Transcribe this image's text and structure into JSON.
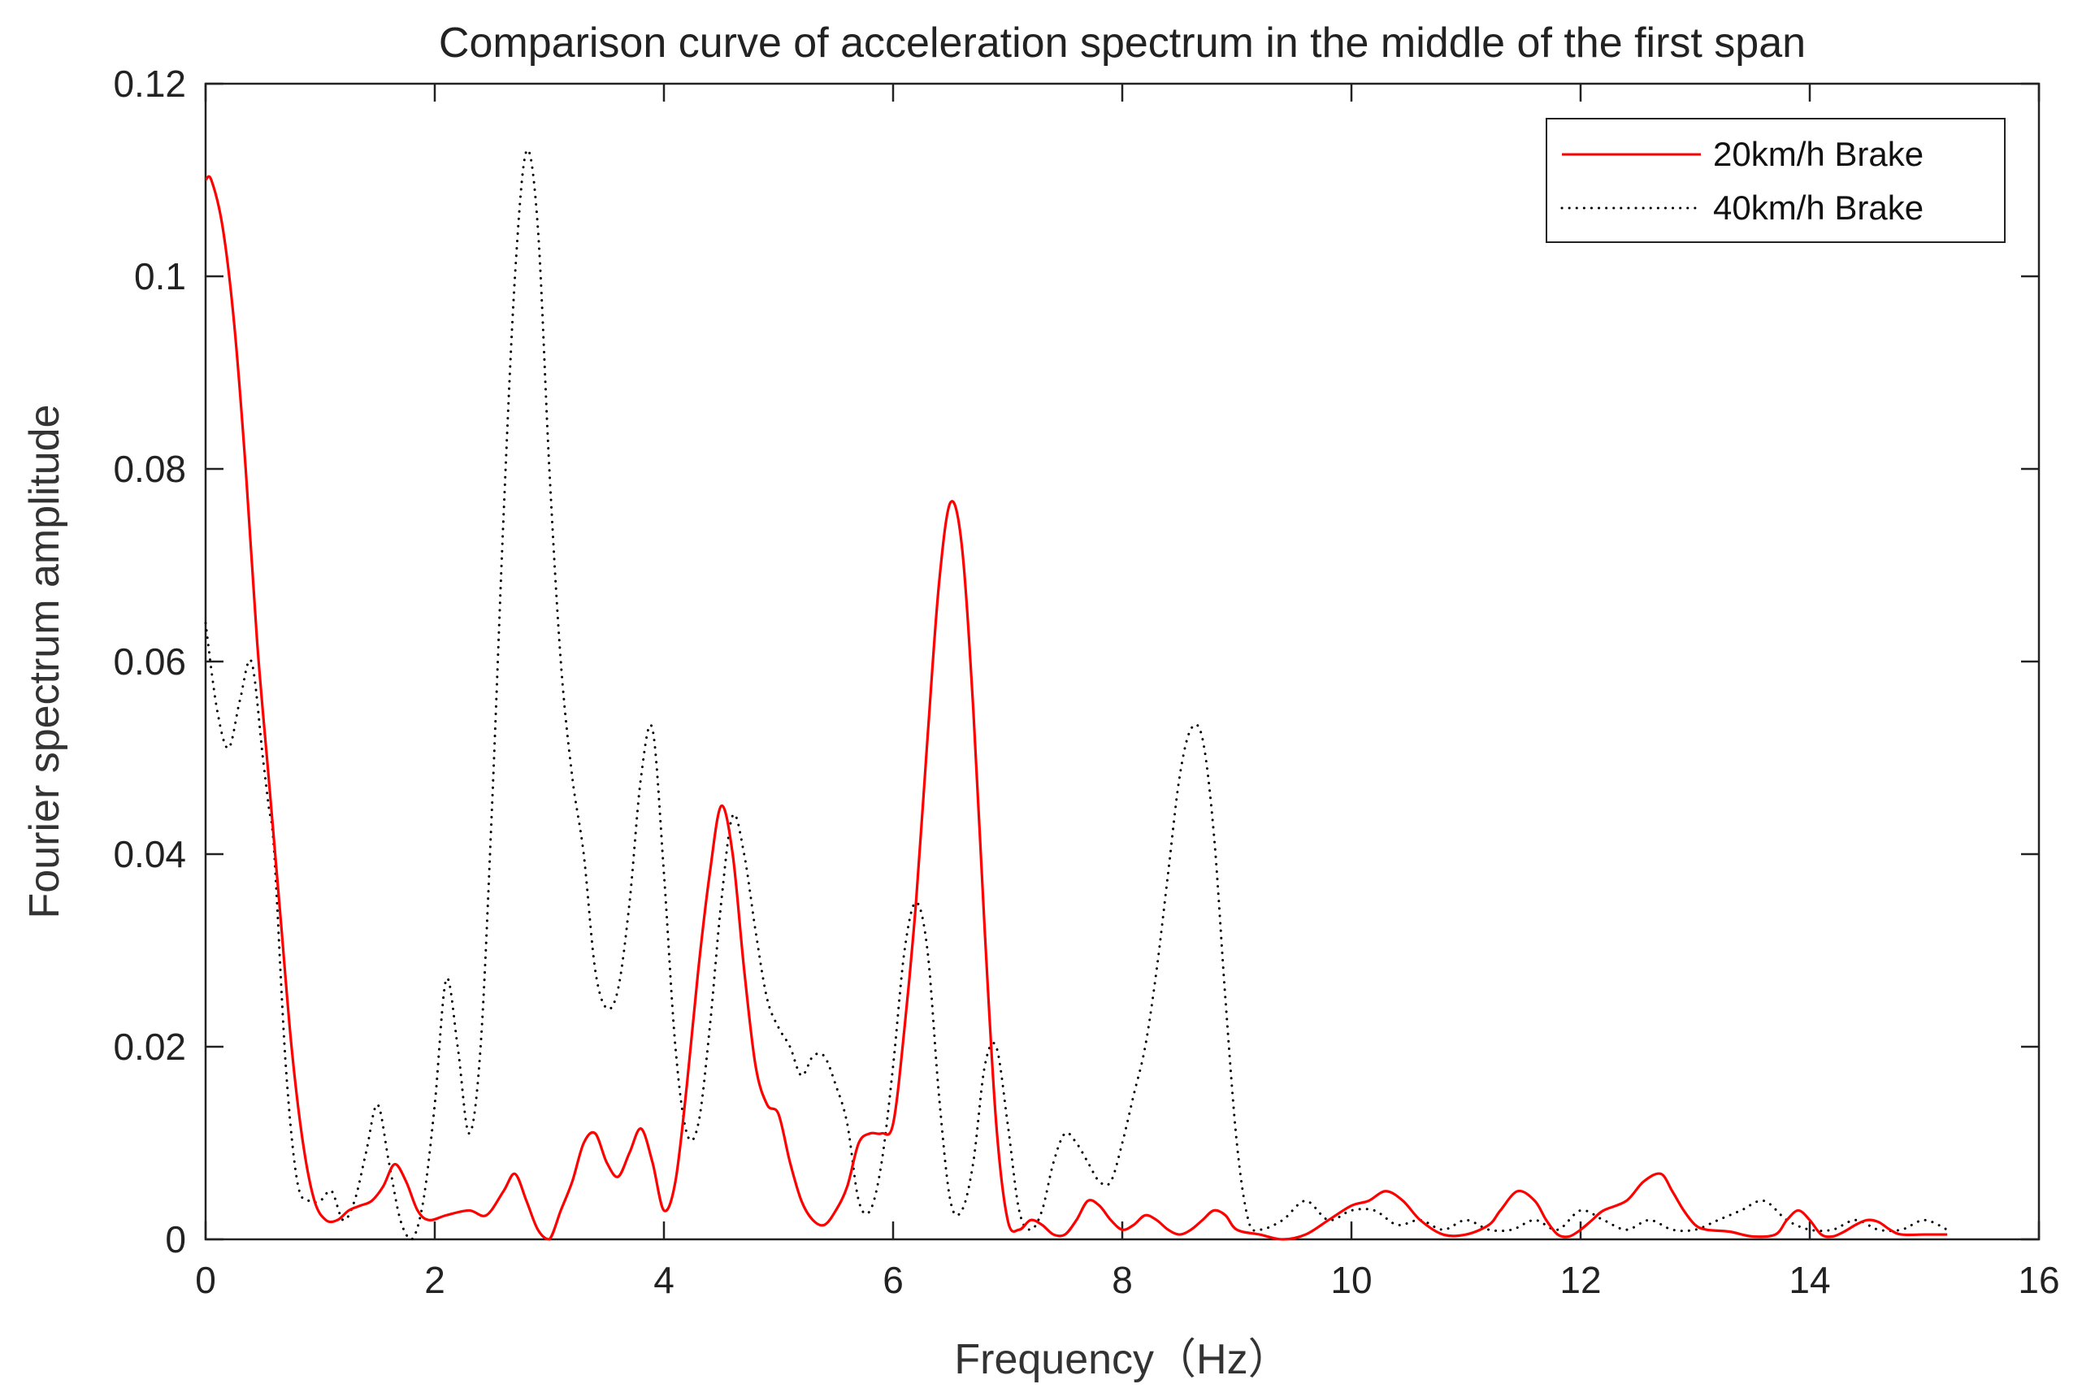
{
  "chart_data": {
    "type": "line",
    "title": "Comparison curve of acceleration spectrum in the middle of the first span",
    "xlabel": "Frequency（Hz）",
    "ylabel": "Fourier spectrum amplitude",
    "xlim": [
      0,
      16
    ],
    "ylim": [
      0,
      0.12
    ],
    "xticks": [
      "0",
      "2",
      "4",
      "6",
      "8",
      "10",
      "12",
      "14",
      "16"
    ],
    "yticks": [
      "0",
      "0.02",
      "0.04",
      "0.06",
      "0.08",
      "0.1",
      "0.12"
    ],
    "grid": false,
    "legend_position": "top-right",
    "series": [
      {
        "name": "20km/h Brake",
        "color": "#ff0000",
        "style": "solid",
        "x": [
          0,
          0.05,
          0.15,
          0.25,
          0.35,
          0.45,
          0.55,
          0.65,
          0.75,
          0.85,
          0.95,
          1.05,
          1.15,
          1.25,
          1.35,
          1.45,
          1.55,
          1.65,
          1.75,
          1.85,
          1.95,
          2.1,
          2.3,
          2.45,
          2.6,
          2.7,
          2.8,
          2.9,
          3.0,
          3.1,
          3.2,
          3.3,
          3.4,
          3.5,
          3.6,
          3.7,
          3.8,
          3.9,
          4.0,
          4.1,
          4.2,
          4.3,
          4.4,
          4.5,
          4.6,
          4.7,
          4.8,
          4.9,
          5.0,
          5.1,
          5.2,
          5.3,
          5.4,
          5.5,
          5.6,
          5.7,
          5.8,
          5.9,
          6.0,
          6.1,
          6.2,
          6.3,
          6.4,
          6.5,
          6.6,
          6.7,
          6.8,
          6.9,
          7.0,
          7.1,
          7.2,
          7.3,
          7.4,
          7.5,
          7.6,
          7.7,
          7.8,
          7.9,
          8.0,
          8.1,
          8.2,
          8.3,
          8.4,
          8.5,
          8.6,
          8.7,
          8.8,
          8.9,
          9.0,
          9.2,
          9.4,
          9.6,
          9.8,
          10.0,
          10.15,
          10.3,
          10.45,
          10.6,
          10.8,
          11.0,
          11.2,
          11.3,
          11.45,
          11.6,
          11.7,
          11.8,
          11.9,
          12.0,
          12.1,
          12.2,
          12.4,
          12.55,
          12.7,
          12.8,
          12.9,
          13.0,
          13.1,
          13.3,
          13.5,
          13.7,
          13.8,
          13.9,
          14.0,
          14.1,
          14.2,
          14.3,
          14.4,
          14.5,
          14.6,
          14.7,
          14.8,
          15.0,
          15.2
        ],
        "y": [
          0.11,
          0.11,
          0.105,
          0.095,
          0.08,
          0.062,
          0.048,
          0.034,
          0.02,
          0.01,
          0.004,
          0.002,
          0.002,
          0.003,
          0.0035,
          0.004,
          0.0055,
          0.0078,
          0.006,
          0.003,
          0.002,
          0.0025,
          0.003,
          0.0025,
          0.005,
          0.0068,
          0.004,
          0.001,
          0.0,
          0.003,
          0.006,
          0.01,
          0.011,
          0.008,
          0.0065,
          0.009,
          0.0115,
          0.008,
          0.003,
          0.006,
          0.016,
          0.028,
          0.038,
          0.045,
          0.04,
          0.028,
          0.018,
          0.014,
          0.013,
          0.008,
          0.004,
          0.002,
          0.0015,
          0.003,
          0.0055,
          0.01,
          0.011,
          0.011,
          0.012,
          0.022,
          0.035,
          0.052,
          0.068,
          0.0765,
          0.072,
          0.055,
          0.032,
          0.012,
          0.002,
          0.001,
          0.002,
          0.0015,
          0.0005,
          0.0005,
          0.002,
          0.004,
          0.0035,
          0.002,
          0.001,
          0.0015,
          0.0025,
          0.002,
          0.001,
          0.0005,
          0.001,
          0.002,
          0.003,
          0.0025,
          0.001,
          0.0005,
          0.0,
          0.0005,
          0.002,
          0.0035,
          0.004,
          0.005,
          0.004,
          0.002,
          0.0005,
          0.0005,
          0.0015,
          0.003,
          0.005,
          0.004,
          0.002,
          0.0005,
          0.0003,
          0.001,
          0.002,
          0.003,
          0.004,
          0.006,
          0.0068,
          0.005,
          0.003,
          0.0015,
          0.001,
          0.0008,
          0.0003,
          0.0005,
          0.002,
          0.003,
          0.002,
          0.0005,
          0.0003,
          0.0008,
          0.0015,
          0.002,
          0.0018,
          0.001,
          0.0005,
          0.0005,
          0.0005
        ]
      },
      {
        "name": "40km/h Brake",
        "color": "#000000",
        "style": "dotted",
        "x": [
          0,
          0.1,
          0.2,
          0.3,
          0.4,
          0.5,
          0.55,
          0.6,
          0.7,
          0.8,
          0.9,
          1.0,
          1.1,
          1.2,
          1.3,
          1.4,
          1.5,
          1.6,
          1.7,
          1.8,
          1.9,
          2.0,
          2.1,
          2.2,
          2.3,
          2.4,
          2.5,
          2.6,
          2.7,
          2.8,
          2.9,
          3.0,
          3.1,
          3.2,
          3.3,
          3.4,
          3.5,
          3.6,
          3.7,
          3.8,
          3.9,
          4.0,
          4.1,
          4.2,
          4.3,
          4.4,
          4.5,
          4.6,
          4.7,
          4.8,
          4.9,
          5.0,
          5.1,
          5.2,
          5.3,
          5.4,
          5.5,
          5.6,
          5.7,
          5.8,
          5.9,
          6.0,
          6.1,
          6.2,
          6.3,
          6.4,
          6.5,
          6.6,
          6.7,
          6.8,
          6.9,
          7.0,
          7.1,
          7.2,
          7.3,
          7.4,
          7.5,
          7.6,
          7.7,
          7.8,
          7.9,
          8.0,
          8.1,
          8.2,
          8.3,
          8.4,
          8.5,
          8.6,
          8.7,
          8.8,
          8.9,
          9.0,
          9.1,
          9.2,
          9.4,
          9.6,
          9.8,
          10.0,
          10.2,
          10.4,
          10.6,
          10.8,
          11.0,
          11.2,
          11.4,
          11.6,
          11.8,
          12.0,
          12.2,
          12.4,
          12.6,
          12.8,
          13.0,
          13.2,
          13.4,
          13.6,
          13.8,
          14.0,
          14.2,
          14.4,
          14.6,
          14.8,
          15.0,
          15.2
        ],
        "y": [
          0.064,
          0.055,
          0.051,
          0.056,
          0.06,
          0.05,
          0.045,
          0.04,
          0.018,
          0.006,
          0.004,
          0.004,
          0.005,
          0.002,
          0.004,
          0.009,
          0.014,
          0.008,
          0.002,
          0.0,
          0.004,
          0.014,
          0.027,
          0.02,
          0.011,
          0.02,
          0.045,
          0.075,
          0.1,
          0.113,
          0.105,
          0.08,
          0.06,
          0.048,
          0.04,
          0.028,
          0.024,
          0.026,
          0.035,
          0.048,
          0.053,
          0.038,
          0.02,
          0.011,
          0.012,
          0.022,
          0.035,
          0.044,
          0.04,
          0.032,
          0.025,
          0.022,
          0.02,
          0.017,
          0.019,
          0.019,
          0.016,
          0.012,
          0.004,
          0.003,
          0.008,
          0.018,
          0.03,
          0.035,
          0.03,
          0.015,
          0.004,
          0.003,
          0.008,
          0.018,
          0.02,
          0.012,
          0.003,
          0.001,
          0.003,
          0.008,
          0.011,
          0.01,
          0.008,
          0.006,
          0.006,
          0.01,
          0.015,
          0.02,
          0.028,
          0.038,
          0.048,
          0.053,
          0.052,
          0.042,
          0.025,
          0.01,
          0.002,
          0.001,
          0.002,
          0.004,
          0.002,
          0.003,
          0.003,
          0.0015,
          0.002,
          0.001,
          0.002,
          0.001,
          0.001,
          0.002,
          0.001,
          0.003,
          0.002,
          0.001,
          0.002,
          0.001,
          0.001,
          0.002,
          0.003,
          0.004,
          0.002,
          0.001,
          0.001,
          0.002,
          0.001,
          0.001,
          0.002,
          0.001
        ]
      }
    ]
  }
}
